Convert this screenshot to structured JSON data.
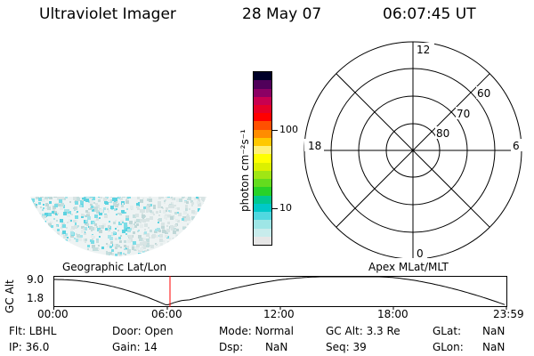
{
  "header": {
    "title": "Ultraviolet Imager",
    "date": "28 May 07",
    "time": "06:07:45 UT"
  },
  "colorbar": {
    "unit": "photon cm⁻²s⁻¹",
    "tick_100": "100",
    "tick_10": "10"
  },
  "polar": {
    "mlt_12": "12",
    "mlt_18": "18",
    "mlt_6": "6",
    "mlt_0": "0",
    "lat_60": "60",
    "lat_70": "70",
    "lat_80": "80"
  },
  "timeline": {
    "left_label": "Geographic Lat/Lon",
    "right_label": "Apex MLat/MLT",
    "axis_title": "GC Alt",
    "y_top": "9.0",
    "y_bottom": "1.8",
    "ticks": [
      "00:00",
      "06:00",
      "12:00",
      "18:00",
      "23:59"
    ]
  },
  "footer": {
    "row1": [
      "Flt: LBHL",
      "Door: Open",
      "Mode: Normal",
      "GC Alt: 3.3 Re",
      "GLat:",
      "NaN"
    ],
    "row2": [
      "IP: 36.0",
      "Gain: 14",
      "Dsp:",
      "NaN",
      "Seq: 39",
      "GLon:",
      "NaN"
    ]
  },
  "colors": {
    "colorbar": [
      "#e6e6e6",
      "#c8ecec",
      "#9ee6e6",
      "#50d8e0",
      "#00c8c8",
      "#00c890",
      "#28d228",
      "#64dc1e",
      "#a0e614",
      "#dcf000",
      "#ffff00",
      "#fff078",
      "#ffc800",
      "#ff8c00",
      "#ff5000",
      "#ff0000",
      "#e60028",
      "#c80050",
      "#8c0064",
      "#50005a",
      "#000028"
    ],
    "marker": "#ff0000",
    "image_speckle": "#5ad2e0"
  }
}
